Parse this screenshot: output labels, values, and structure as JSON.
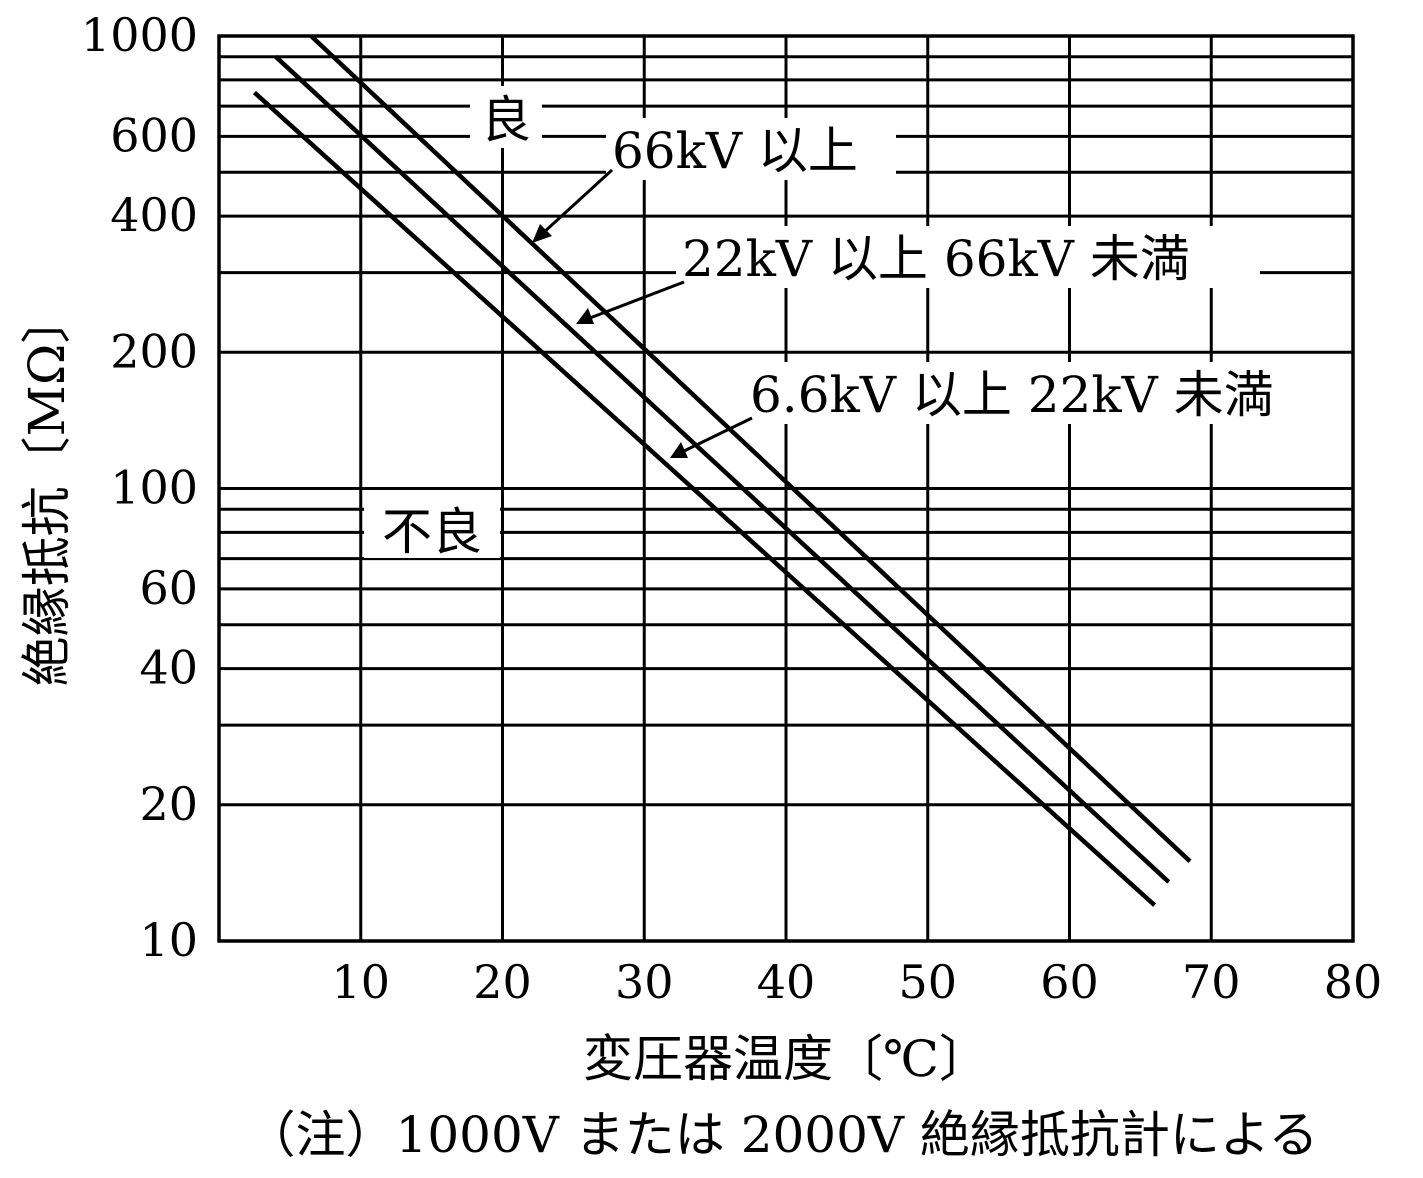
{
  "chart_data": {
    "type": "line",
    "xlabel": "変圧器温度〔℃〕",
    "ylabel": "絶縁抵抗〔MΩ〕",
    "xlim": [
      0,
      80
    ],
    "ylim": [
      10,
      1000
    ],
    "y_scale": "log",
    "grid": true,
    "x_ticks": [
      10,
      20,
      30,
      40,
      50,
      60,
      70,
      80
    ],
    "x_tick_labels": [
      "10",
      "20",
      "30",
      "40",
      "50",
      "60",
      "70",
      "80"
    ],
    "y_ticks": [
      10,
      20,
      40,
      60,
      100,
      200,
      400,
      600,
      1000
    ],
    "y_tick_labels": [
      "10",
      "20",
      "40",
      "60",
      "100",
      "200",
      "400",
      "600",
      "1000"
    ],
    "y_gridlines": [
      10,
      20,
      30,
      40,
      50,
      60,
      70,
      80,
      90,
      100,
      200,
      300,
      400,
      500,
      600,
      700,
      800,
      900,
      1000
    ],
    "series": [
      {
        "name": "66kV 以上",
        "x": [
          6.5,
          68.5
        ],
        "y": [
          1000,
          15
        ]
      },
      {
        "name": "22kV 以上 66kV 未満",
        "x": [
          4,
          67
        ],
        "y": [
          900,
          13.5
        ]
      },
      {
        "name": "6.6kV 以上 22kV 未満",
        "x": [
          2.5,
          66
        ],
        "y": [
          750,
          12
        ]
      }
    ],
    "annotations": [
      {
        "text": "良",
        "x": 20,
        "y": 640
      },
      {
        "text": "不良",
        "x": 13,
        "y": 75
      }
    ]
  },
  "note": "（注）1000V または 2000V 絶縁抵抗計による"
}
